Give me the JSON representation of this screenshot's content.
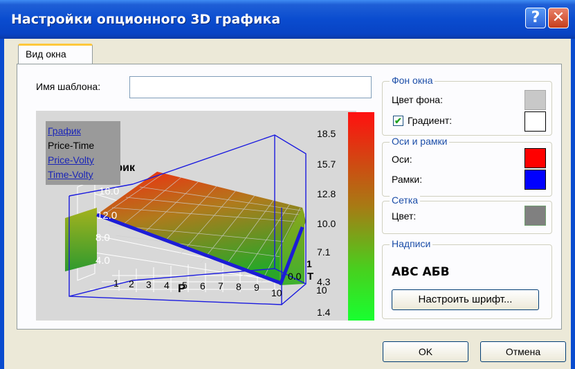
{
  "window": {
    "title": "Настройки опционного 3D графика",
    "help_label": "?",
    "close_label": "✕"
  },
  "tabs": [
    {
      "label": "Вид окна"
    }
  ],
  "template": {
    "label": "Имя шаблона:",
    "value": ""
  },
  "chart": {
    "legend": [
      "График",
      "Price-Time",
      "Price-Volty",
      "Time-Volty"
    ],
    "overlay_title": "График",
    "colorbar_ticks": [
      "18.5",
      "15.7",
      "12.8",
      "10.0",
      "7.1",
      "4.3",
      "1.4"
    ],
    "z_ticks": [
      "16.0",
      "12.0",
      "8.0",
      "4.0"
    ],
    "p_ticks": [
      "1",
      "2",
      "3",
      "4",
      "5",
      "6",
      "7",
      "8",
      "9",
      "10"
    ],
    "p_axis": "P",
    "t_axis": "T",
    "t_ticks": [
      "1",
      "0.0",
      "10"
    ],
    "colors": {
      "axes": "#1414d2",
      "grid": "#ffffff"
    }
  },
  "background_group": {
    "title": "Фон окна",
    "color_label": "Цвет фона:",
    "color": "#c8c8c8",
    "gradient_label": "Градиент:",
    "gradient_checked": true,
    "gradient_color": "#ffffff"
  },
  "axes_group": {
    "title": "Оси и рамки",
    "axes_label": "Оси:",
    "axes_color": "#ff0000",
    "frames_label": "Рамки:",
    "frames_color": "#0000ff"
  },
  "grid_group": {
    "title": "Сетка",
    "color_label": "Цвет:",
    "color": "#808080"
  },
  "labels_group": {
    "title": "Надписи",
    "sample": "ABC АБВ",
    "font_button": "Настроить шрифт..."
  },
  "buttons": {
    "ok": "OK",
    "cancel": "Отмена"
  }
}
